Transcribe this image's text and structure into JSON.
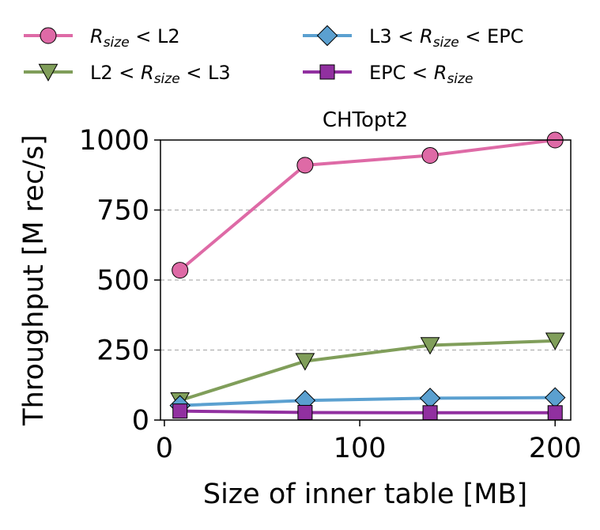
{
  "chart_data": {
    "type": "line",
    "title": "CHTopt2",
    "xlabel": "Size of inner table [MB]",
    "ylabel": "Throughput [M rec/s]",
    "xlim": [
      -2,
      208
    ],
    "ylim": [
      0,
      1000
    ],
    "xticks": [
      0,
      100,
      200
    ],
    "yticks": [
      0,
      250,
      500,
      750,
      1000
    ],
    "grid": "horizontal dashed",
    "legend_position": "above plot, two columns",
    "x": [
      8,
      72,
      136,
      200
    ],
    "series": [
      {
        "name_parts": [
          "R",
          "size",
          " < L2"
        ],
        "marker": "circle",
        "color": "#de6aa6",
        "values": [
          535,
          910,
          945,
          1000
        ]
      },
      {
        "name_parts": [
          "L2 < ",
          "R",
          "size",
          " < L3"
        ],
        "marker": "triangle-down",
        "color": "#809e5a",
        "values": [
          70,
          210,
          267,
          283
        ]
      },
      {
        "name_parts": [
          "L3 < ",
          "R",
          "size",
          " < EPC"
        ],
        "marker": "diamond",
        "color": "#5ba0d0",
        "values": [
          52,
          70,
          78,
          80
        ]
      },
      {
        "name_parts": [
          "EPC < ",
          "R",
          "size",
          ""
        ],
        "marker": "square",
        "color": "#9130a0",
        "values": [
          32,
          27,
          26,
          26
        ]
      }
    ]
  }
}
